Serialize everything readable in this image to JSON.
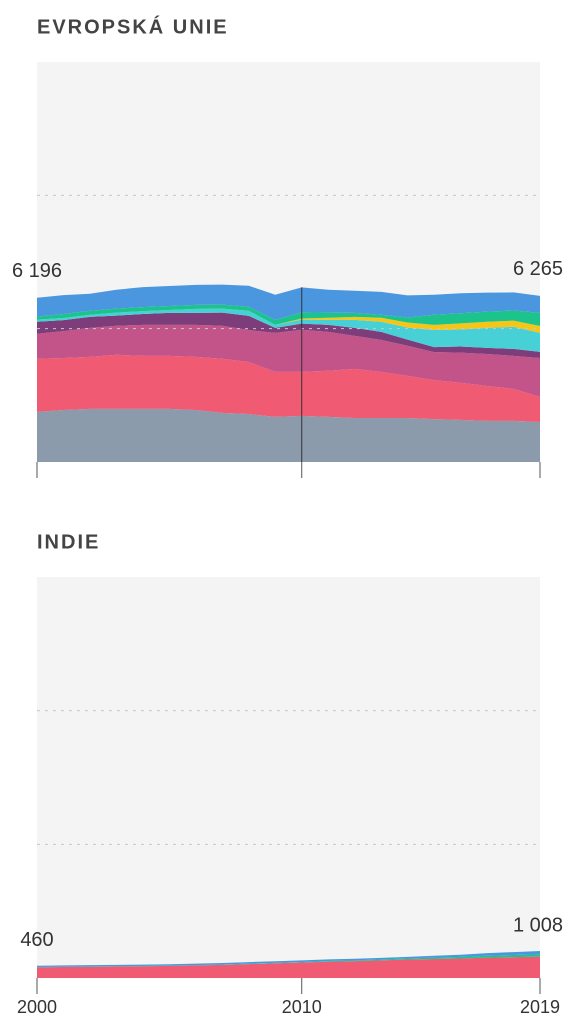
{
  "chart_data": [
    {
      "type": "area",
      "stacked": true,
      "title": "EVROPSKÁ UNIE",
      "x": [
        2000,
        2001,
        2002,
        2003,
        2004,
        2005,
        2006,
        2007,
        2008,
        2009,
        2010,
        2011,
        2012,
        2013,
        2014,
        2015,
        2016,
        2017,
        2018,
        2019
      ],
      "series": [
        {
          "color": "#8c9bab",
          "values": [
            1880,
            1950,
            1990,
            1990,
            1990,
            1990,
            1950,
            1840,
            1800,
            1690,
            1730,
            1690,
            1650,
            1650,
            1650,
            1610,
            1580,
            1540,
            1540,
            1500
          ]
        },
        {
          "color": "#f05a72",
          "values": [
            1990,
            1950,
            1950,
            2030,
            1990,
            1990,
            1990,
            2030,
            1950,
            1690,
            1650,
            1730,
            1840,
            1730,
            1580,
            1460,
            1390,
            1310,
            1200,
            940
          ]
        },
        {
          "color": "#c2548a",
          "values": [
            940,
            1010,
            1090,
            1090,
            1160,
            1160,
            1200,
            1240,
            1200,
            1460,
            1580,
            1460,
            1240,
            1200,
            1130,
            1050,
            1130,
            1200,
            1240,
            1460
          ]
        },
        {
          "color": "#7d3c7a",
          "values": [
            450,
            410,
            410,
            380,
            410,
            450,
            450,
            490,
            530,
            190,
            230,
            260,
            300,
            300,
            230,
            190,
            230,
            230,
            260,
            230
          ]
        },
        {
          "color": "#47d1d6",
          "values": [
            80,
            80,
            80,
            110,
            110,
            110,
            150,
            150,
            190,
            110,
            150,
            190,
            300,
            380,
            450,
            640,
            640,
            750,
            830,
            710
          ]
        },
        {
          "color": "#f5c518",
          "values": [
            0,
            0,
            0,
            0,
            0,
            0,
            0,
            0,
            0,
            0,
            40,
            80,
            110,
            150,
            190,
            190,
            230,
            230,
            230,
            260
          ]
        },
        {
          "color": "#1cc48c",
          "values": [
            110,
            150,
            150,
            150,
            150,
            150,
            150,
            150,
            150,
            190,
            230,
            190,
            150,
            110,
            190,
            380,
            380,
            380,
            380,
            490
          ]
        },
        {
          "color": "#4a97e0",
          "values": [
            710,
            710,
            640,
            710,
            750,
            750,
            750,
            750,
            790,
            940,
            940,
            860,
            830,
            860,
            830,
            750,
            750,
            710,
            680,
            640
          ]
        }
      ],
      "total_labels": [
        {
          "value": 6196,
          "label": "6 196"
        },
        {
          "value": 6265,
          "label": "6 265"
        }
      ],
      "xlim": [
        2000,
        2019
      ],
      "xticks": [
        2000,
        2010,
        2019
      ],
      "ylim": [
        0,
        15000
      ],
      "yticks": [
        5000,
        10000
      ],
      "grid": true
    },
    {
      "type": "area",
      "stacked": true,
      "title": "INDIE",
      "x": [
        2000,
        2001,
        2002,
        2003,
        2004,
        2005,
        2006,
        2007,
        2008,
        2009,
        2010,
        2011,
        2012,
        2013,
        2014,
        2015,
        2016,
        2017,
        2018,
        2019
      ],
      "series": [
        {
          "color": "#f05a72",
          "values": [
            400,
            410,
            420,
            430,
            440,
            455,
            470,
            490,
            520,
            550,
            580,
            610,
            630,
            660,
            690,
            710,
            730,
            760,
            780,
            800
          ]
        },
        {
          "color": "#1cc48c",
          "values": [
            10,
            10,
            10,
            10,
            10,
            10,
            12,
            14,
            16,
            18,
            20,
            25,
            30,
            35,
            40,
            50,
            60,
            70,
            80,
            90
          ]
        },
        {
          "color": "#4a97e0",
          "values": [
            50,
            50,
            50,
            50,
            50,
            50,
            55,
            55,
            60,
            60,
            60,
            60,
            60,
            60,
            60,
            70,
            80,
            100,
            110,
            118
          ]
        }
      ],
      "total_labels": [
        {
          "value": 460,
          "label": "460"
        },
        {
          "value": 1008,
          "label": "1 008"
        }
      ],
      "xlim": [
        2000,
        2019
      ],
      "xticks": [
        2000,
        2010,
        2019
      ],
      "ylim": [
        0,
        15000
      ],
      "yticks": [
        5000,
        10000
      ],
      "grid": true
    }
  ]
}
